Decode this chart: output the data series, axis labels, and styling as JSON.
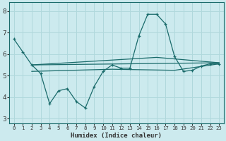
{
  "xlabel": "Humidex (Indice chaleur)",
  "bg_color": "#cceaee",
  "line_color": "#1a6b6b",
  "grid_color": "#b0d8dc",
  "xlim": [
    -0.5,
    23.5
  ],
  "ylim": [
    2.8,
    8.4
  ],
  "yticks": [
    3,
    4,
    5,
    6,
    7,
    8
  ],
  "xtick_labels": [
    "0",
    "1",
    "2",
    "3",
    "4",
    "5",
    "6",
    "7",
    "8",
    "9",
    "10",
    "11",
    "12",
    "13",
    "14",
    "15",
    "16",
    "17",
    "18",
    "19",
    "20",
    "21",
    "22",
    "23"
  ],
  "main_x": [
    0,
    1,
    2,
    3,
    4,
    5,
    6,
    7,
    8,
    9,
    10,
    11,
    12,
    13,
    14,
    15,
    16,
    17,
    18,
    19,
    20,
    21,
    22,
    23
  ],
  "main_y": [
    6.7,
    6.1,
    5.5,
    5.1,
    3.7,
    4.3,
    4.4,
    3.8,
    3.5,
    4.5,
    5.2,
    5.5,
    5.35,
    5.35,
    6.85,
    7.85,
    7.85,
    7.4,
    5.9,
    5.2,
    5.25,
    5.45,
    5.55,
    5.55
  ],
  "hline1_x": [
    2,
    23
  ],
  "hline1_y": [
    5.5,
    5.6
  ],
  "hline2_x": [
    2,
    16,
    23
  ],
  "hline2_y": [
    5.5,
    5.85,
    5.6
  ],
  "hline3_x": [
    2,
    11,
    18,
    23
  ],
  "hline3_y": [
    5.2,
    5.3,
    5.25,
    5.55
  ]
}
